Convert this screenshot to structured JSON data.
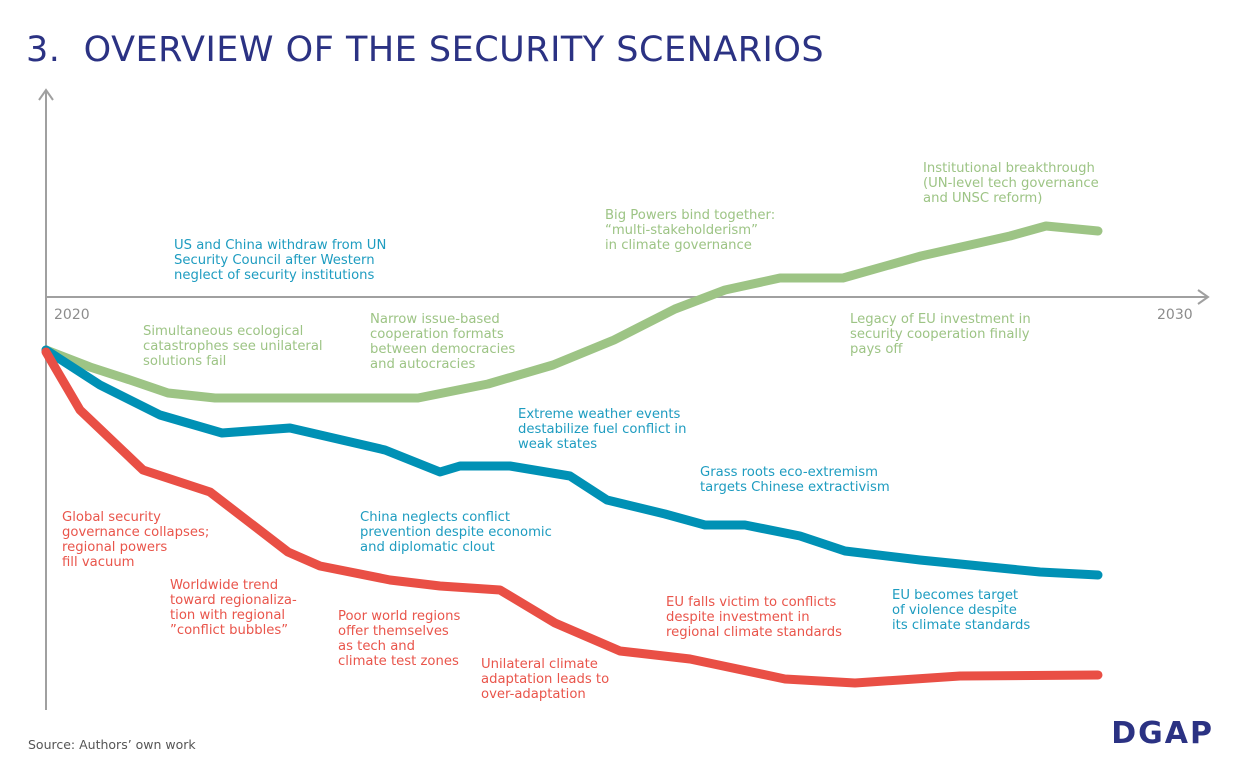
{
  "title": "3.  OVERVIEW OF THE SECURITY SCENARIOS",
  "x_axis": {
    "start": "2020",
    "end": "2030"
  },
  "colors": {
    "title": "#2b3283",
    "green": "#9dc485",
    "blue": "#0091b5",
    "red": "#e94f45",
    "axis": "#a0a0a0"
  },
  "labels": {
    "green": [
      "Simultaneous ecological\ncatastrophes see unilateral\nsolutions fail",
      "Narrow issue-based\ncooperation formats\nbetween democracies\nand autocracies",
      "Big Powers bind together:\n“multi-stakeholderism”\nin climate governance",
      "Institutional breakthrough\n(UN-level tech governance\nand UNSC reform)",
      "Legacy of EU investment in\nsecurity cooperation finally\npays off"
    ],
    "blue": [
      "US and China withdraw from UN\nSecurity Council after Western\nneglect of security institutions",
      "China neglects conflict\nprevention despite economic\nand diplomatic clout",
      "Extreme weather events\ndestabilize fuel conflict in\nweak states",
      "Grass roots eco-extremism\ntargets Chinese extractivism",
      "EU becomes target\nof violence despite\nits climate standards"
    ],
    "red": [
      "Global security\ngovernance collapses;\nregional powers\nfill vacuum",
      "Worldwide trend\ntoward regionaliza-\ntion with regional\n”conflict bubbles”",
      "Poor world regions\noffer themselves\nas tech and\nclimate test zones",
      "Unilateral climate\nadaptation leads to\nover-adaptation",
      "EU falls victim to conflicts\ndespite investment in\nregional climate standards"
    ]
  },
  "source": "Source: Authors’ own work",
  "logo": "DGAP"
}
